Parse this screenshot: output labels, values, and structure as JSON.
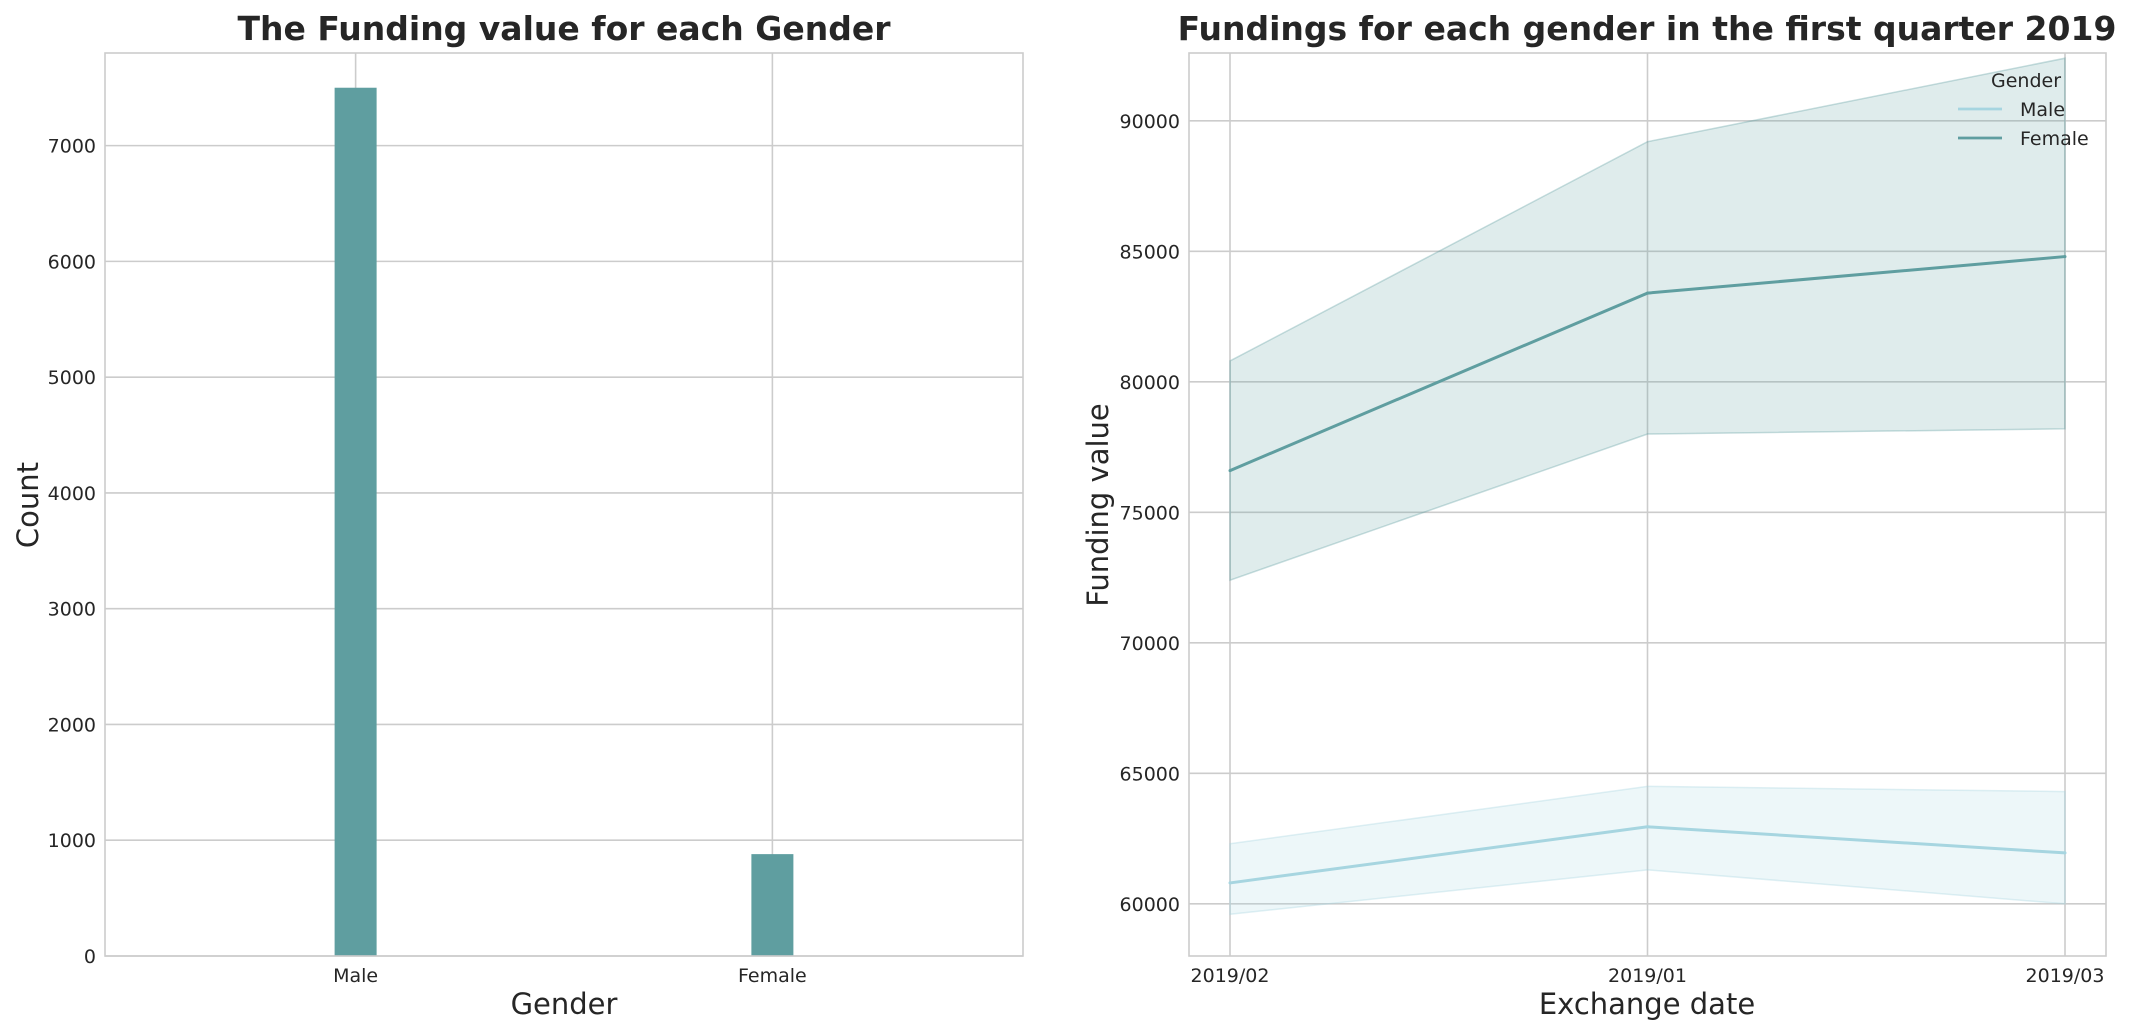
{
  "chart_data": [
    {
      "type": "bar",
      "title": "The Funding value for each Gender",
      "xlabel": "Gender",
      "ylabel": "Count",
      "categories": [
        "Male",
        "Female"
      ],
      "values": [
        7500,
        880
      ],
      "ylim": [
        0,
        7800
      ],
      "yticks": [
        0,
        1000,
        2000,
        3000,
        4000,
        5000,
        6000,
        7000
      ],
      "grid": true,
      "colors": {
        "bar": "#5f9ea0"
      }
    },
    {
      "type": "line",
      "title": "Fundings for each gender in the first quarter 2019",
      "xlabel": "Exchange date",
      "ylabel": "Funding value",
      "x": [
        "2019/02",
        "2019/01",
        "2019/03"
      ],
      "ylim": [
        58000,
        92600
      ],
      "yticks": [
        60000,
        65000,
        70000,
        75000,
        80000,
        85000,
        90000
      ],
      "grid": true,
      "legend": {
        "title": "Gender",
        "placement": "top-right"
      },
      "series": [
        {
          "name": "Male",
          "color": "#a6d5e0",
          "values": [
            60800,
            62950,
            61950
          ],
          "ci_low": [
            59600,
            61300,
            60000
          ],
          "ci_high": [
            62300,
            64500,
            64300
          ]
        },
        {
          "name": "Female",
          "color": "#5f9ea0",
          "values": [
            76600,
            83400,
            84800
          ],
          "ci_low": [
            72400,
            78000,
            78200
          ],
          "ci_high": [
            80800,
            89200,
            92400
          ]
        }
      ]
    }
  ]
}
